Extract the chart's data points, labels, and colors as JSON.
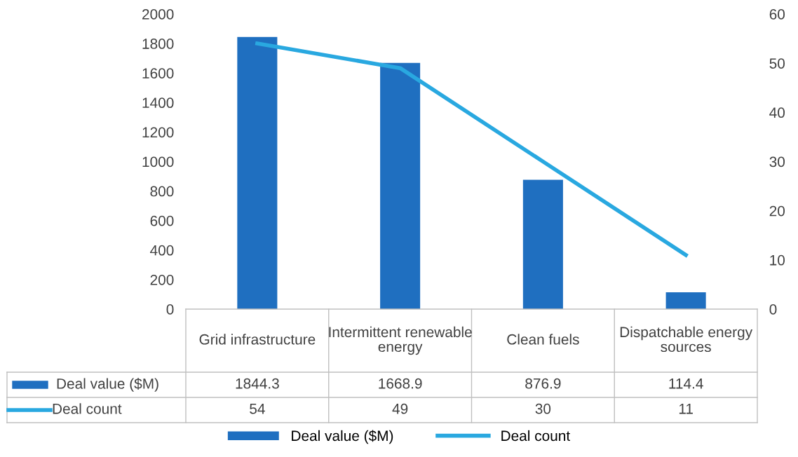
{
  "chart_data": {
    "type": "bar",
    "categories": [
      "Grid infrastructure",
      "Intermittent renewable energy",
      "Clean fuels",
      "Dispatchable energy sources"
    ],
    "series": [
      {
        "name": "Deal value ($M)",
        "color": "#1f6fc0",
        "values": [
          1844.3,
          1668.9,
          876.9,
          114.4
        ]
      },
      {
        "name": "Deal count",
        "type": "line",
        "axis": "y2",
        "color": "#29a8e0",
        "values": [
          54,
          49,
          30,
          11
        ]
      }
    ],
    "ylim": [
      0,
      2000
    ],
    "yticks": [
      0,
      200,
      400,
      600,
      800,
      1000,
      1200,
      1400,
      1600,
      1800,
      2000
    ],
    "y2lim": [
      0,
      60
    ],
    "y2ticks": [
      0,
      10,
      20,
      30,
      40,
      50,
      60
    ],
    "data_labels": true,
    "legend": "bottom"
  }
}
